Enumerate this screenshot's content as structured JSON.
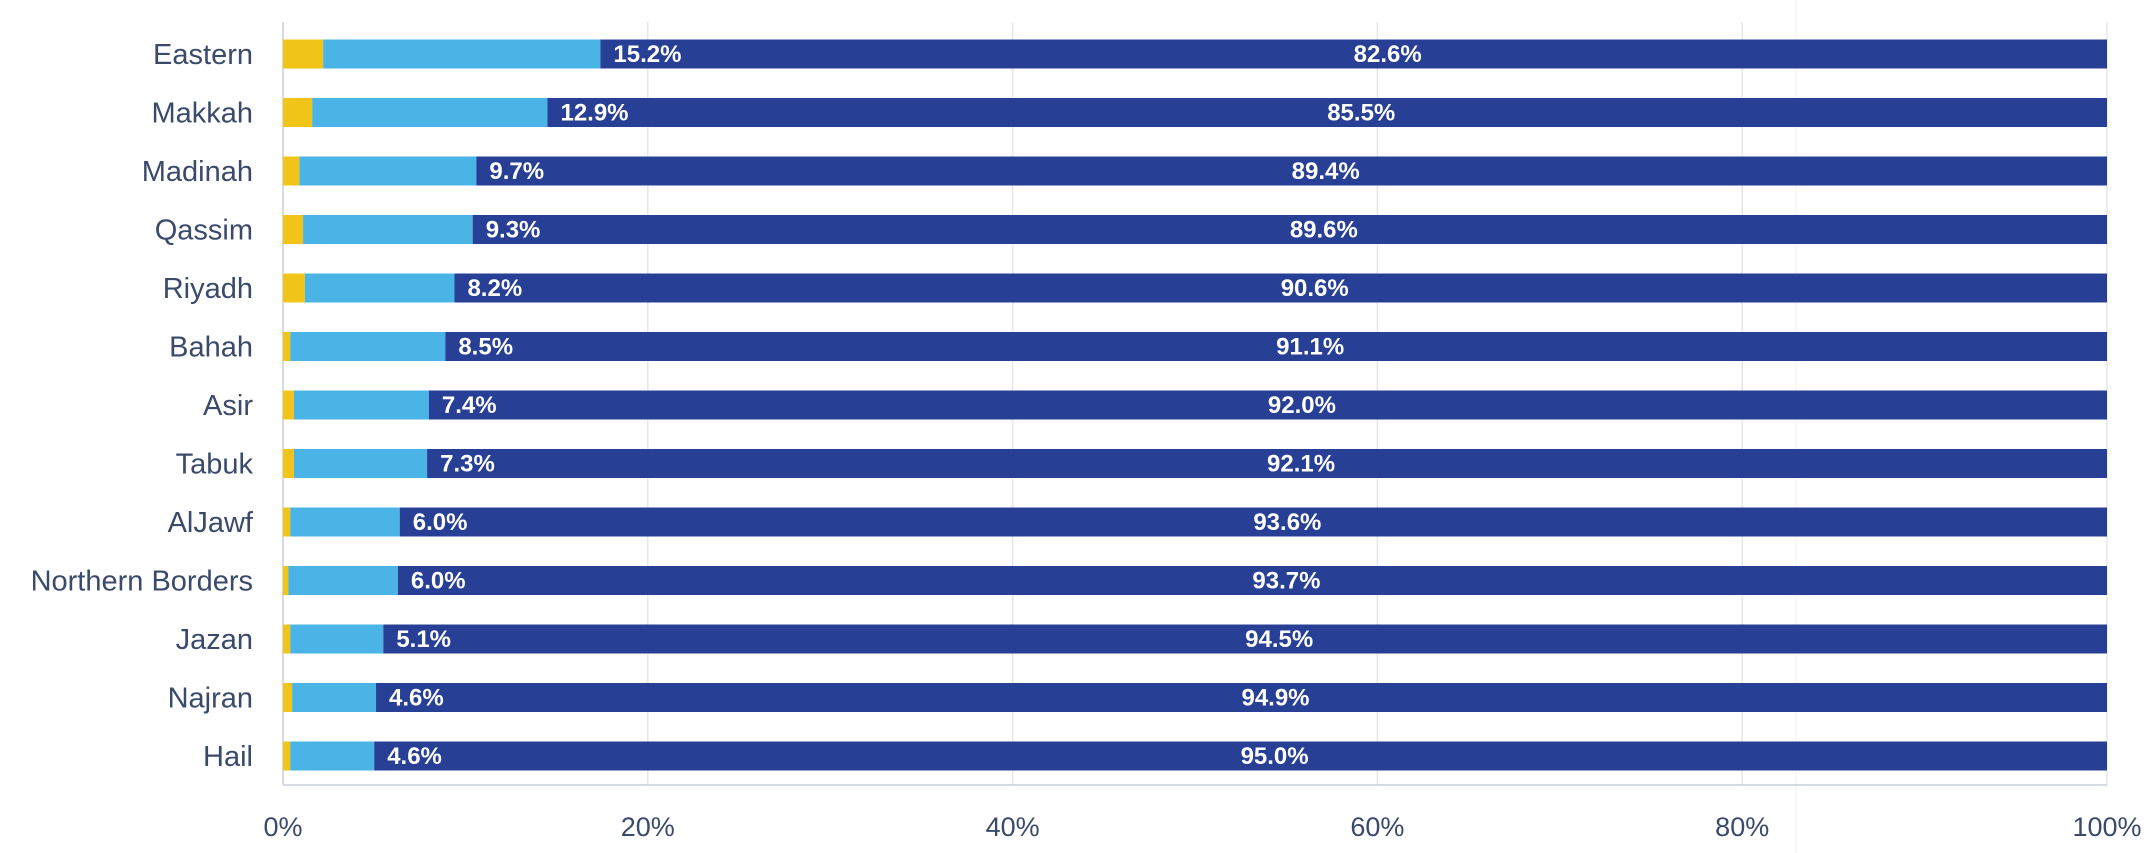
{
  "chart_data": {
    "type": "bar",
    "orientation": "horizontal",
    "stacked": true,
    "normalized": true,
    "categories": [
      "Eastern",
      "Makkah",
      "Madinah",
      "Qassim",
      "Riyadh",
      "Bahah",
      "Asir",
      "Tabuk",
      "AlJawf",
      "Northern Borders",
      "Jazan",
      "Najran",
      "Hail"
    ],
    "series": [
      {
        "values": [
          2.2,
          1.6,
          0.9,
          1.1,
          1.2,
          0.4,
          0.6,
          0.6,
          0.4,
          0.3,
          0.4,
          0.5,
          0.4
        ],
        "color": "#f0c419",
        "show_labels": false
      },
      {
        "values": [
          15.2,
          12.9,
          9.7,
          9.3,
          8.2,
          8.5,
          7.4,
          7.3,
          6.0,
          6.0,
          5.1,
          4.6,
          4.6
        ],
        "labels": [
          "15.2%",
          "12.9%",
          "9.7%",
          "9.3%",
          "8.2%",
          "8.5%",
          "7.4%",
          "7.3%",
          "6.0%",
          "6.0%",
          "5.1%",
          "4.6%",
          "4.6%"
        ],
        "color": "#4bb4e6",
        "show_labels": true
      },
      {
        "values": [
          82.6,
          85.5,
          89.4,
          89.6,
          90.6,
          91.1,
          92.0,
          92.1,
          93.6,
          93.7,
          94.5,
          94.9,
          95.0
        ],
        "labels": [
          "82.6%",
          "85.5%",
          "89.4%",
          "89.6%",
          "90.6%",
          "91.1%",
          "92.0%",
          "92.1%",
          "93.6%",
          "93.7%",
          "94.5%",
          "94.9%",
          "95.0%"
        ],
        "color": "#283f96",
        "show_labels": true
      }
    ],
    "xlim": [
      0,
      100
    ],
    "x_ticks": [
      0,
      20,
      40,
      60,
      80,
      100
    ],
    "x_tick_labels": [
      "0%",
      "20%",
      "40%",
      "60%",
      "80%",
      "100%"
    ],
    "grid": true,
    "legend": "none"
  }
}
